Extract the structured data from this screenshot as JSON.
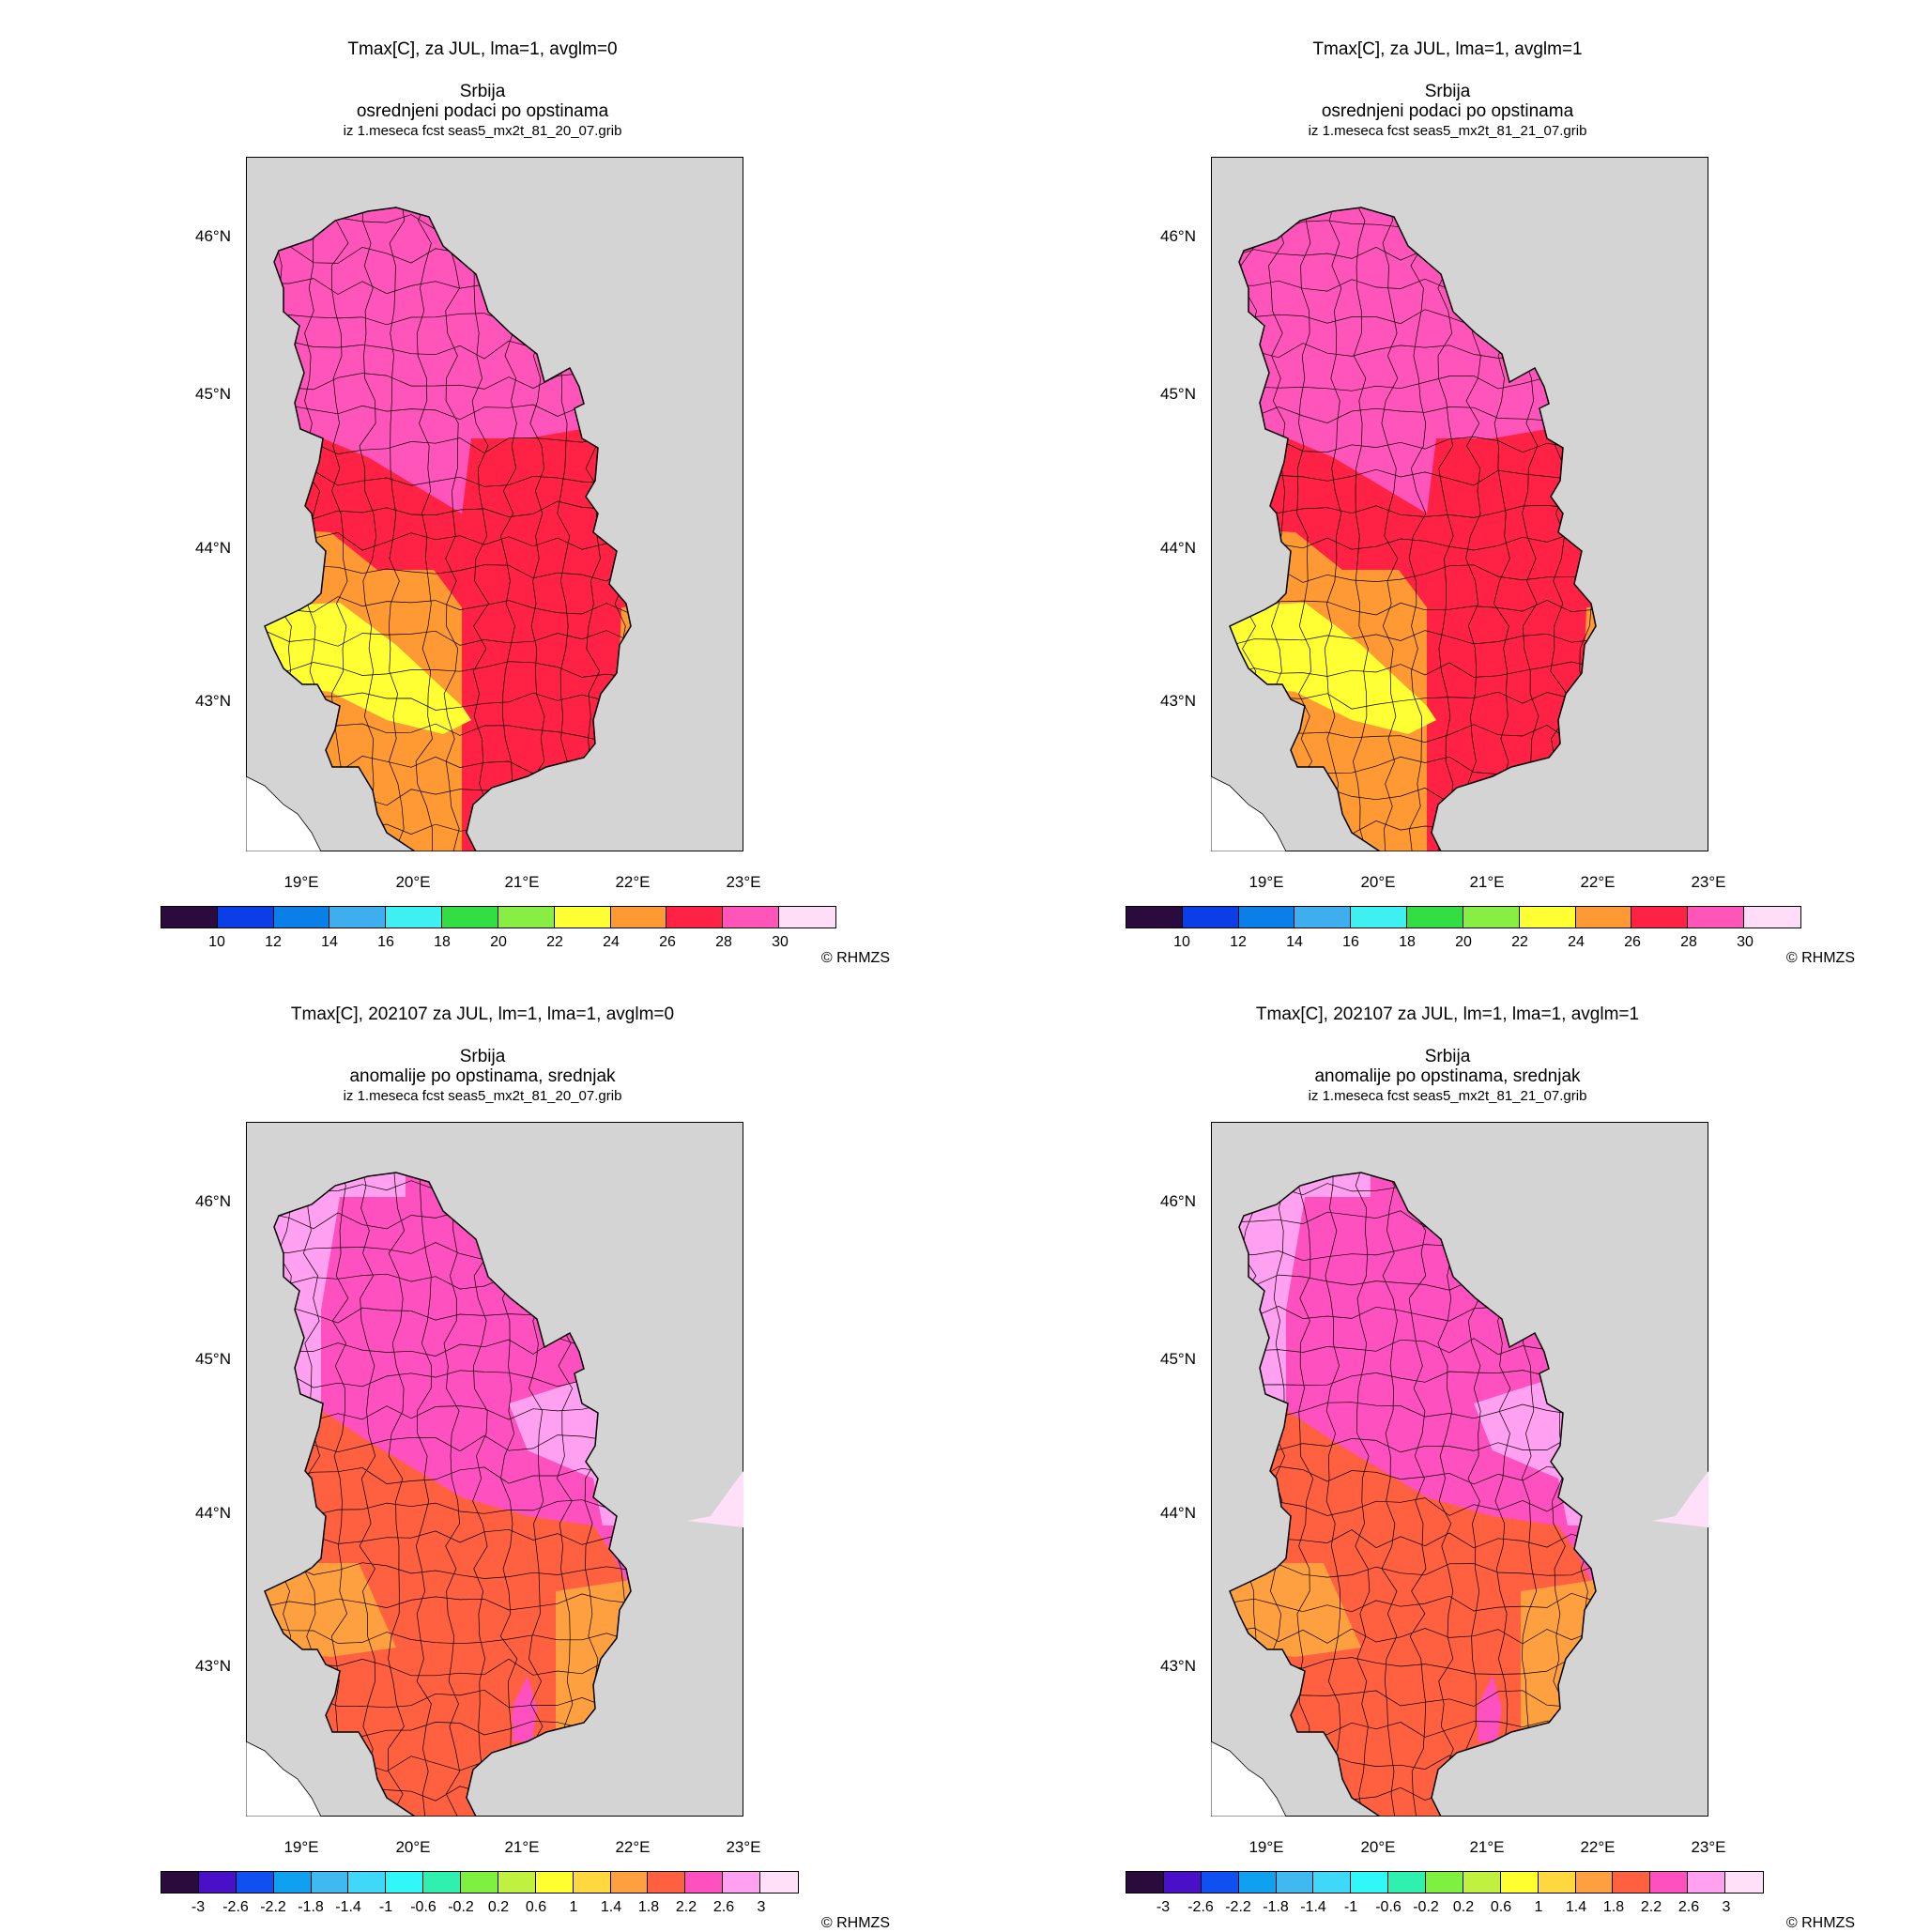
{
  "panels": [
    {
      "title_line1": "Tmax[C], za JUL, lma=1, avglm=0",
      "title_line2": "Srbija",
      "title_line3": "osrednjeni podaci po opstinama",
      "title_line4": "iz 1.meseca fcst seas5_mx2t_81_20_07.grib",
      "kind": "abs",
      "ylabels": [
        "46°N",
        "45°N",
        "44°N",
        "43°N"
      ],
      "xlabels": [
        "19°E",
        "20°E",
        "21°E",
        "22°E",
        "23°E"
      ],
      "colorbar_colors": [
        "#2b0a3d",
        "#0a3fe8",
        "#0a7fe8",
        "#3faeee",
        "#3ff0f2",
        "#33dd44",
        "#88ee44",
        "#ffff33",
        "#ff9933",
        "#ff2244",
        "#ff55bb",
        "#ffdcf8"
      ],
      "colorbar_labels": [
        "10",
        "12",
        "14",
        "16",
        "18",
        "20",
        "22",
        "24",
        "26",
        "28",
        "30"
      ],
      "copyright": "© RHMZS"
    },
    {
      "title_line1": "Tmax[C], za JUL, lma=1, avglm=1",
      "title_line2": "Srbija",
      "title_line3": "osrednjeni podaci po opstinama",
      "title_line4": "iz 1.meseca fcst seas5_mx2t_81_21_07.grib",
      "kind": "abs",
      "ylabels": [
        "46°N",
        "45°N",
        "44°N",
        "43°N"
      ],
      "xlabels": [
        "19°E",
        "20°E",
        "21°E",
        "22°E",
        "23°E"
      ],
      "colorbar_colors": [
        "#2b0a3d",
        "#0a3fe8",
        "#0a7fe8",
        "#3faeee",
        "#3ff0f2",
        "#33dd44",
        "#88ee44",
        "#ffff33",
        "#ff9933",
        "#ff2244",
        "#ff55bb",
        "#ffdcf8"
      ],
      "colorbar_labels": [
        "10",
        "12",
        "14",
        "16",
        "18",
        "20",
        "22",
        "24",
        "26",
        "28",
        "30"
      ],
      "copyright": "© RHMZS"
    },
    {
      "title_line1": "Tmax[C], 202107 za JUL, lm=1, lma=1, avglm=0",
      "title_line2": "Srbija",
      "title_line3": "anomalije po opstinama, srednjak",
      "title_line4": "iz 1.meseca fcst seas5_mx2t_81_20_07.grib",
      "kind": "anom",
      "ylabels": [
        "46°N",
        "45°N",
        "44°N",
        "43°N"
      ],
      "xlabels": [
        "19°E",
        "20°E",
        "21°E",
        "22°E",
        "23°E"
      ],
      "colorbar_colors": [
        "#2b0a3d",
        "#4a10c8",
        "#1050f0",
        "#10a0f0",
        "#40b8f0",
        "#40d8f8",
        "#30f8f8",
        "#30f0b0",
        "#80f040",
        "#c0f040",
        "#ffff30",
        "#ffd840",
        "#ffa040",
        "#ff6040",
        "#ff50c0",
        "#ffa0f0",
        "#ffe0f8"
      ],
      "colorbar_labels": [
        "-3",
        "-2.6",
        "-2.2",
        "-1.8",
        "-1.4",
        "-1",
        "-0.6",
        "-0.2",
        "0.2",
        "0.6",
        "1",
        "1.4",
        "1.8",
        "2.2",
        "2.6",
        "3"
      ],
      "copyright": "© RHMZS"
    },
    {
      "title_line1": "Tmax[C], 202107 za JUL, lm=1, lma=1, avglm=1",
      "title_line2": "Srbija",
      "title_line3": "anomalije po opstinama, srednjak",
      "title_line4": "iz 1.meseca fcst seas5_mx2t_81_21_07.grib",
      "kind": "anom",
      "ylabels": [
        "46°N",
        "45°N",
        "44°N",
        "43°N"
      ],
      "xlabels": [
        "19°E",
        "20°E",
        "21°E",
        "22°E",
        "23°E"
      ],
      "colorbar_colors": [
        "#2b0a3d",
        "#4a10c8",
        "#1050f0",
        "#10a0f0",
        "#40b8f0",
        "#40d8f8",
        "#30f8f8",
        "#30f0b0",
        "#80f040",
        "#c0f040",
        "#ffff30",
        "#ffd840",
        "#ffa040",
        "#ff6040",
        "#ff50c0",
        "#ffa0f0",
        "#ffe0f8"
      ],
      "colorbar_labels": [
        "-3",
        "-2.6",
        "-2.2",
        "-1.8",
        "-1.4",
        "-1",
        "-0.6",
        "-0.2",
        "0.2",
        "0.6",
        "1",
        "1.4",
        "1.8",
        "2.2",
        "2.6",
        "3"
      ],
      "copyright": "© RHMZS"
    }
  ]
}
